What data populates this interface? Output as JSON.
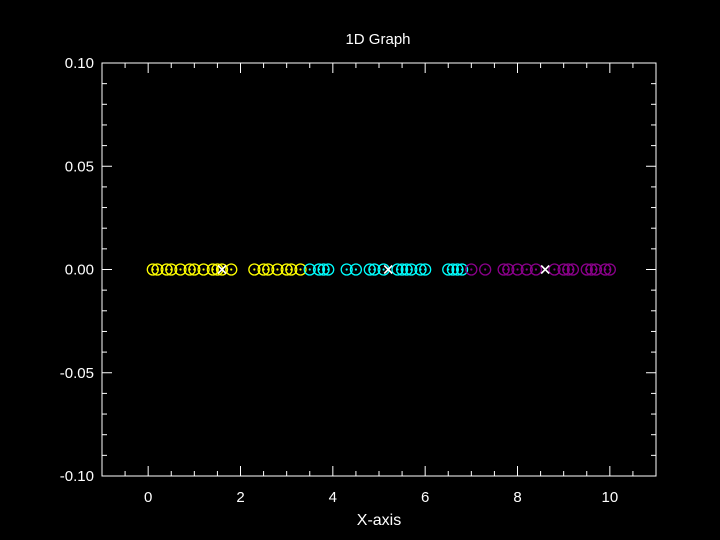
{
  "chart_data": {
    "type": "scatter",
    "title": "1D Graph",
    "xlabel": "X-axis",
    "ylabel": "",
    "xlim": [
      -1,
      11
    ],
    "ylim": [
      -0.1,
      0.1
    ],
    "xticks": [
      0,
      2,
      4,
      6,
      8,
      10
    ],
    "xtick_labels": [
      "0",
      "2",
      "4",
      "6",
      "8",
      "10"
    ],
    "yticks": [
      0.1,
      0.05,
      0.0,
      -0.05,
      -0.1
    ],
    "ytick_labels": [
      "0.10",
      "0.05",
      "0.00",
      "-0.05",
      "-0.10"
    ],
    "grid": false,
    "colors": {
      "background": "#000000",
      "axes": "#ffffff",
      "cluster_1": "#ffff00",
      "cluster_2": "#00ffff",
      "cluster_3": "#8b008b",
      "centroid": "#ffffff"
    },
    "series": [
      {
        "color_key": "cluster_1",
        "marker": "circle-dot",
        "x": [
          0.1,
          0.2,
          0.4,
          0.5,
          0.7,
          0.9,
          1.0,
          1.2,
          1.4,
          1.5,
          1.6,
          1.8,
          2.3,
          2.5,
          2.6,
          2.8,
          3.0,
          3.1,
          3.3
        ],
        "y": [
          0,
          0,
          0,
          0,
          0,
          0,
          0,
          0,
          0,
          0,
          0,
          0,
          0,
          0,
          0,
          0,
          0,
          0,
          0
        ]
      },
      {
        "color_key": "cluster_2",
        "marker": "circle-dot",
        "x": [
          3.5,
          3.7,
          3.8,
          3.9,
          4.3,
          4.5,
          4.8,
          4.9,
          5.1,
          5.4,
          5.5,
          5.6,
          5.7,
          5.9,
          6.0,
          6.5,
          6.6,
          6.7,
          6.8
        ],
        "y": [
          0,
          0,
          0,
          0,
          0,
          0,
          0,
          0,
          0,
          0,
          0,
          0,
          0,
          0,
          0,
          0,
          0,
          0,
          0
        ]
      },
      {
        "color_key": "cluster_3",
        "marker": "circle-dot",
        "x": [
          7.0,
          7.3,
          7.7,
          7.8,
          8.0,
          8.2,
          8.4,
          8.8,
          9.0,
          9.1,
          9.2,
          9.5,
          9.6,
          9.7,
          9.9,
          10.0
        ],
        "y": [
          0,
          0,
          0,
          0,
          0,
          0,
          0,
          0,
          0,
          0,
          0,
          0,
          0,
          0,
          0,
          0
        ]
      },
      {
        "color_key": "centroid",
        "marker": "x",
        "x": [
          1.6,
          5.2,
          8.6
        ],
        "y": [
          0,
          0,
          0
        ]
      }
    ]
  }
}
